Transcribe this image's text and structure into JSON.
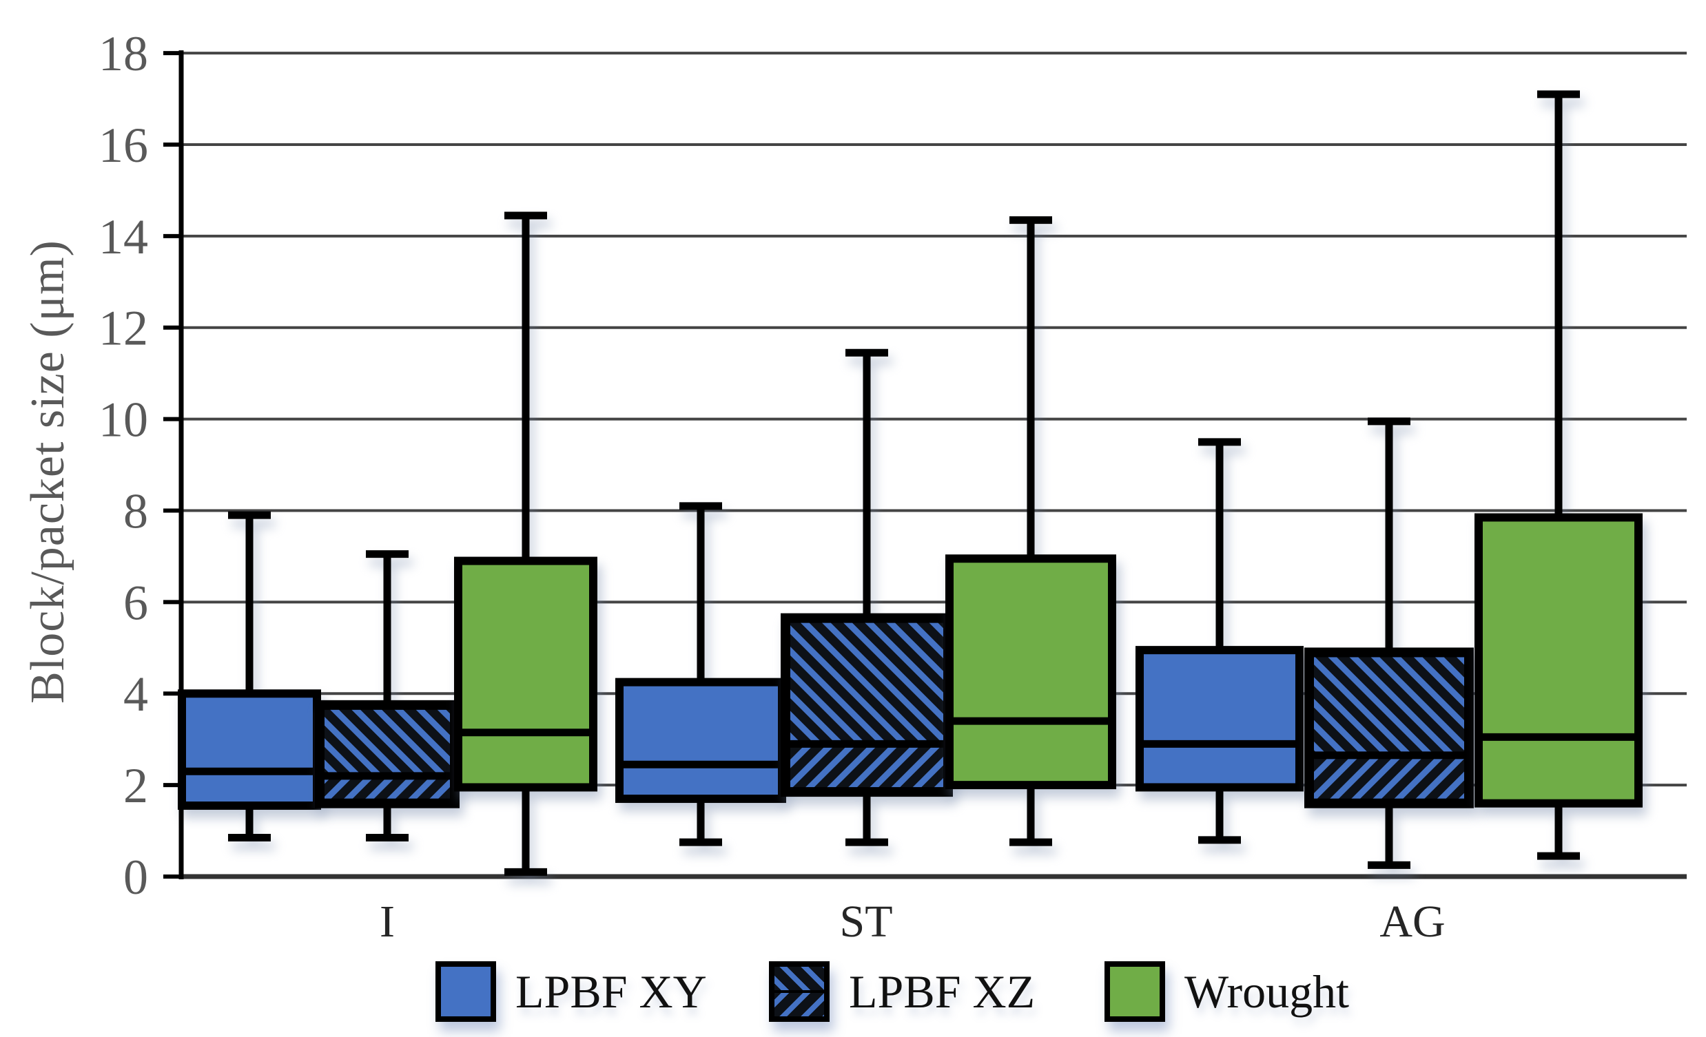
{
  "chart_data": {
    "type": "boxplot",
    "title": "",
    "xlabel": "",
    "ylabel": "Block/packet size (μm)",
    "categories": [
      "I",
      "ST",
      "AG"
    ],
    "y_ticks": [
      0,
      2,
      4,
      6,
      8,
      10,
      12,
      14,
      16,
      18
    ],
    "ylim": [
      0,
      18
    ],
    "grid": "horizontal",
    "legend_position": "bottom",
    "colors": {
      "lpbf_blue": "#4472C4",
      "wrought_green": "#70AD47",
      "box_outline": "#000000",
      "gridline": "#444444",
      "axis_text": "#595959",
      "category_text": "#262626"
    },
    "series": [
      {
        "name": "LPBF XY",
        "style": "solid-blue",
        "color": "#4472C4",
        "boxes": [
          {
            "category": "I",
            "whisker_low": 0.85,
            "q1": 1.55,
            "median": 2.3,
            "q3": 4.0,
            "whisker_high": 7.9
          },
          {
            "category": "ST",
            "whisker_low": 0.75,
            "q1": 1.7,
            "median": 2.45,
            "q3": 4.25,
            "whisker_high": 8.1
          },
          {
            "category": "AG",
            "whisker_low": 0.8,
            "q1": 1.95,
            "median": 2.9,
            "q3": 4.95,
            "whisker_high": 9.5
          }
        ]
      },
      {
        "name": "LPBF XZ",
        "style": "hatched-blue",
        "color": "#4472C4",
        "boxes": [
          {
            "category": "I",
            "whisker_low": 0.85,
            "q1": 1.6,
            "median": 2.2,
            "q3": 3.75,
            "whisker_high": 7.05
          },
          {
            "category": "ST",
            "whisker_low": 0.75,
            "q1": 1.85,
            "median": 2.9,
            "q3": 5.65,
            "whisker_high": 11.45
          },
          {
            "category": "AG",
            "whisker_low": 0.25,
            "q1": 1.6,
            "median": 2.65,
            "q3": 4.9,
            "whisker_high": 9.95
          }
        ]
      },
      {
        "name": "Wrought",
        "style": "solid-green",
        "color": "#70AD47",
        "boxes": [
          {
            "category": "I",
            "whisker_low": 0.1,
            "q1": 1.95,
            "median": 3.15,
            "q3": 6.9,
            "whisker_high": 14.45
          },
          {
            "category": "ST",
            "whisker_low": 0.75,
            "q1": 2.0,
            "median": 3.4,
            "q3": 6.95,
            "whisker_high": 14.35
          },
          {
            "category": "AG",
            "whisker_low": 0.45,
            "q1": 1.6,
            "median": 3.05,
            "q3": 7.85,
            "whisker_high": 17.1
          }
        ]
      }
    ],
    "legend": {
      "items": [
        "LPBF XY",
        "LPBF XZ",
        "Wrought"
      ]
    }
  }
}
